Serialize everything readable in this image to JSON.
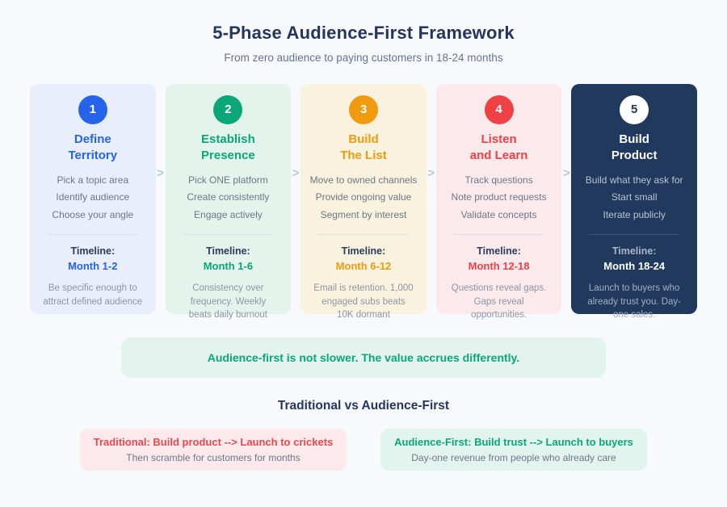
{
  "header": {
    "title": "5-Phase Audience-First Framework",
    "subtitle": "From zero audience to paying customers in 18-24 months"
  },
  "chevron": ">",
  "colors": {
    "page_bg": "#f8f9fc",
    "heading_text": "#25365d",
    "muted_text": "#6e7787",
    "chevron": "#bcc8d6",
    "phase1_accent": "#2563eb",
    "phase1_bg": "#e8eefb",
    "phase2_accent": "#0ca678",
    "phase2_bg": "#e3f4ed",
    "phase3_accent": "#ef9b0d",
    "phase3_bg": "#f9f2de",
    "phase4_accent": "#ee4145",
    "phase4_bg": "#fbe9ec",
    "phase5_bg": "#20395c",
    "phase5_text": "#ffffff",
    "banner_bg": "#e2f4ed",
    "banner_text": "#0ca678"
  },
  "phases": [
    {
      "number": "1",
      "title": "Define\nTerritory",
      "items": [
        "Pick a topic area",
        "Identify audience",
        "Choose your angle"
      ],
      "timeline_label": "Timeline:",
      "timeline_value": "Month 1-2",
      "note": "Be specific enough to attract defined audience"
    },
    {
      "number": "2",
      "title": "Establish\nPresence",
      "items": [
        "Pick ONE platform",
        "Create consistently",
        "Engage actively"
      ],
      "timeline_label": "Timeline:",
      "timeline_value": "Month 1-6",
      "note": "Consistency over frequency. Weekly beats daily burnout"
    },
    {
      "number": "3",
      "title": "Build\nThe List",
      "items": [
        "Move to owned channels",
        "Provide ongoing value",
        "Segment by interest"
      ],
      "timeline_label": "Timeline:",
      "timeline_value": "Month 6-12",
      "note": "Email is retention. 1,000 engaged subs beats 10K dormant"
    },
    {
      "number": "4",
      "title": "Listen\nand Learn",
      "items": [
        "Track questions",
        "Note product requests",
        "Validate concepts"
      ],
      "timeline_label": "Timeline:",
      "timeline_value": "Month 12-18",
      "note": "Questions reveal gaps. Gaps reveal opportunities."
    },
    {
      "number": "5",
      "title": "Build\nProduct",
      "items": [
        "Build what they ask for",
        "Start small",
        "Iterate publicly"
      ],
      "timeline_label": "Timeline:",
      "timeline_value": "Month 18-24",
      "note": "Launch to buyers who already trust you. Day-one sales."
    }
  ],
  "banner": {
    "text": "Audience-first is not slower. The value accrues differently."
  },
  "comparison": {
    "heading": "Traditional vs Audience-First",
    "traditional": {
      "title": "Traditional: Build product --> Launch to crickets",
      "subtitle": "Then scramble for customers for months"
    },
    "audience_first": {
      "title": "Audience-First: Build trust --> Launch to buyers",
      "subtitle": "Day-one revenue from people who already care"
    }
  }
}
